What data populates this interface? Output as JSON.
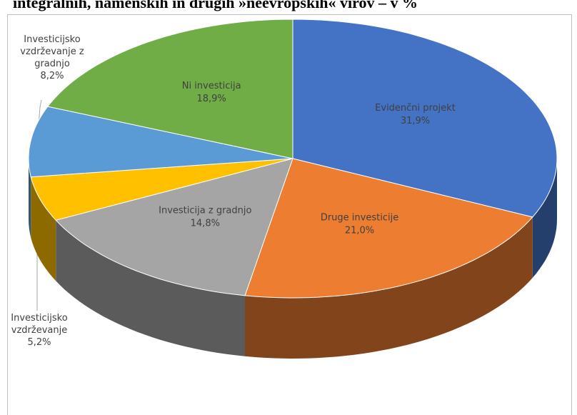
{
  "chart_data": {
    "type": "pie3d",
    "title": "integralnih, namenskih in drugih »neevropskih« virov – v %",
    "categories": [
      "Evidenčni projekt",
      "Druge investicije",
      "Investicija z gradnjo",
      "Investicijsko vzdrževanje",
      "Investicijsko vzdrževanje z gradnjo",
      "Ni investicija"
    ],
    "values": [
      31.9,
      21.0,
      14.8,
      5.2,
      8.2,
      18.9
    ],
    "value_labels": [
      "31,9%",
      "21,0%",
      "14,8%",
      "5,2%",
      "8,2%",
      "18,9%"
    ],
    "colors": [
      "#4472c4",
      "#ed7d31",
      "#a5a5a5",
      "#ffc000",
      "#5b9bd5",
      "#70ad47"
    ]
  }
}
